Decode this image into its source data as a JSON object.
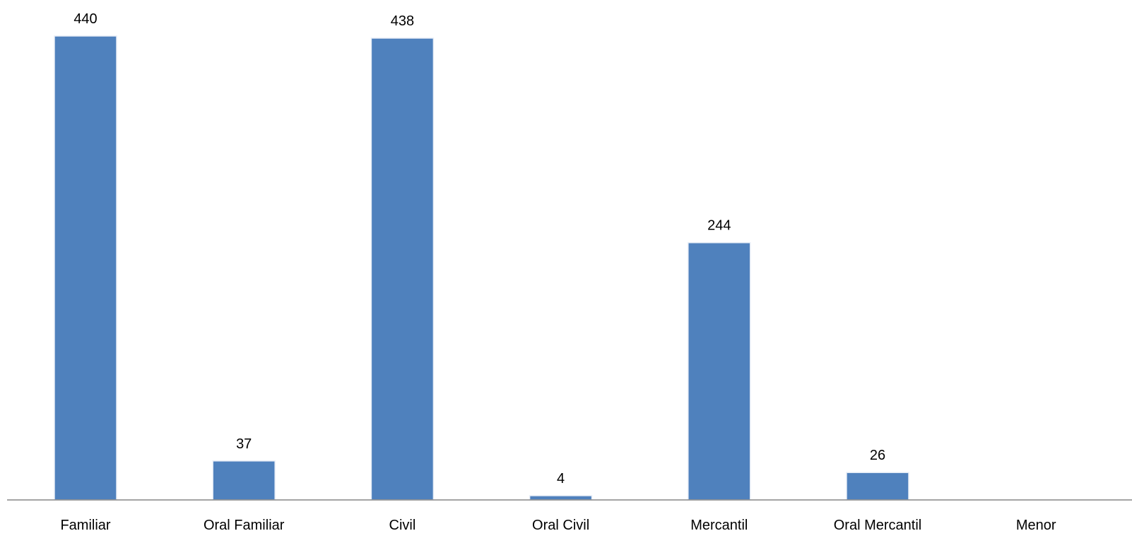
{
  "chart_data": {
    "type": "bar",
    "categories": [
      "Familiar",
      "Oral Familiar",
      "Civil",
      "Oral Civil",
      "Mercantil",
      "Oral Mercantil",
      "Menor"
    ],
    "values": [
      440,
      37,
      438,
      4,
      244,
      26,
      0
    ],
    "data_labels": [
      "440",
      "37",
      "438",
      "4",
      "244",
      "26",
      ""
    ],
    "title": "",
    "xlabel": "",
    "ylabel": "",
    "ylim": [
      0,
      440
    ],
    "grid": false,
    "legend": "none",
    "bar_color": "#4F81BD",
    "axis_color": "#868686"
  }
}
